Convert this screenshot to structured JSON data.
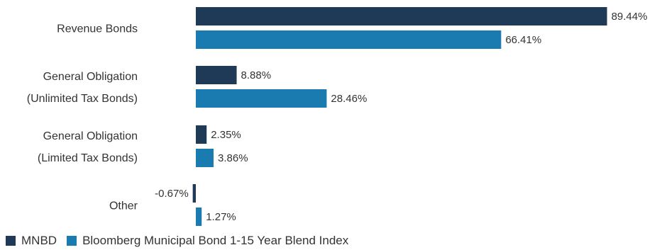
{
  "chart_data": {
    "type": "bar",
    "orientation": "horizontal",
    "categories": [
      [
        "Revenue Bonds"
      ],
      [
        "General Obligation",
        "(Unlimited Tax Bonds)"
      ],
      [
        "General Obligation",
        "(Limited Tax Bonds)"
      ],
      [
        "Other"
      ]
    ],
    "series": [
      {
        "name": "MNBD",
        "color": "#1e3a56",
        "values": [
          89.44,
          8.88,
          2.35,
          -0.67
        ],
        "labels": [
          "89.44%",
          "8.88%",
          "2.35%",
          "-0.67%"
        ]
      },
      {
        "name": "Bloomberg Municipal Bond 1-15 Year Blend Index",
        "color": "#1a7bb0",
        "values": [
          66.41,
          28.46,
          3.86,
          1.27
        ],
        "labels": [
          "66.41%",
          "28.46%",
          "3.86%",
          "1.27%"
        ]
      }
    ],
    "xlim": [
      -0.67,
      89.44
    ],
    "grid": false,
    "legend_position": "bottom-left"
  }
}
